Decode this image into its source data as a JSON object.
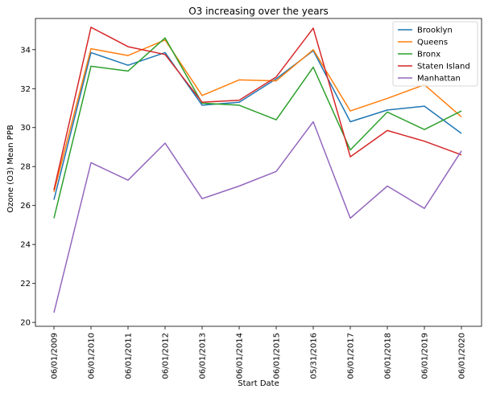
{
  "chart_data": {
    "type": "line",
    "title": "O3 increasing over the years",
    "xlabel": "Start Date",
    "ylabel": "Ozone (O3) Mean PPB",
    "categories": [
      "06/01/2009",
      "06/01/2010",
      "06/01/2011",
      "06/01/2012",
      "06/01/2013",
      "06/01/2014",
      "06/01/2015",
      "05/31/2016",
      "06/01/2017",
      "06/01/2018",
      "06/01/2019",
      "06/01/2020"
    ],
    "ylim": [
      19.8,
      35.6
    ],
    "yticks": [
      20,
      22,
      24,
      26,
      28,
      30,
      32,
      34
    ],
    "grid": false,
    "legend_position": "top-right",
    "series": [
      {
        "name": "Brooklyn",
        "color": "#1f77b4",
        "values": [
          26.3,
          33.85,
          33.2,
          33.85,
          31.15,
          31.3,
          32.5,
          33.95,
          30.3,
          30.9,
          31.1,
          29.7
        ]
      },
      {
        "name": "Queens",
        "color": "#ff7f0e",
        "values": [
          26.7,
          34.05,
          33.7,
          34.5,
          31.65,
          32.45,
          32.4,
          34.0,
          30.85,
          31.5,
          32.2,
          30.55
        ]
      },
      {
        "name": "Bronx",
        "color": "#2ca02c",
        "values": [
          25.35,
          33.15,
          32.9,
          34.6,
          31.25,
          31.15,
          30.4,
          33.1,
          28.85,
          30.8,
          29.9,
          30.85
        ]
      },
      {
        "name": "Staten Island",
        "color": "#d62728",
        "values": [
          26.8,
          35.15,
          34.15,
          33.75,
          31.3,
          31.4,
          32.6,
          35.1,
          28.5,
          29.85,
          29.3,
          28.6
        ]
      },
      {
        "name": "Manhattan",
        "color": "#9467bd",
        "values": [
          20.5,
          28.2,
          27.3,
          29.2,
          26.35,
          27.0,
          27.75,
          30.3,
          25.35,
          27.0,
          25.85,
          28.8
        ]
      }
    ]
  }
}
